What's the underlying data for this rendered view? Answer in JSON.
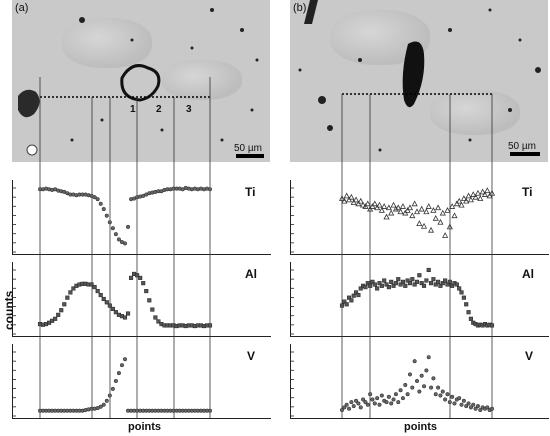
{
  "figure": {
    "panel_a_tag": "(a)",
    "panel_b_tag": "(b)",
    "scale_bar_a": "50 µm",
    "scale_bar_b": "50 µm",
    "regions_a": [
      "1",
      "2",
      "3"
    ],
    "ylabel": "counts",
    "xlabel_a": "points",
    "xlabel_b": "points"
  },
  "chart_data": [
    {
      "type": "scatter",
      "panel": "a",
      "element": "Ti",
      "xlabel": "points",
      "ylabel": "counts",
      "marker": "circle",
      "x": [
        0,
        3,
        6,
        9,
        12,
        15,
        18,
        21,
        24,
        27,
        30,
        33,
        36,
        39,
        42,
        45,
        48,
        51,
        54,
        57,
        60,
        63,
        66,
        69,
        72,
        75,
        78,
        81,
        84,
        87,
        90,
        93,
        96,
        99,
        102,
        105,
        108,
        111,
        114,
        117,
        120,
        123,
        126,
        129,
        132,
        135,
        138,
        141,
        144,
        147,
        150,
        153,
        156,
        159,
        162,
        165,
        168
      ],
      "values": [
        0.92,
        0.92,
        0.93,
        0.92,
        0.91,
        0.92,
        0.9,
        0.89,
        0.88,
        0.86,
        0.84,
        0.84,
        0.83,
        0.84,
        0.84,
        0.84,
        0.83,
        0.82,
        0.8,
        0.77,
        0.7,
        0.62,
        0.52,
        0.42,
        0.33,
        0.24,
        0.16,
        0.12,
        0.1,
        0.35,
        0.77,
        0.78,
        0.8,
        0.81,
        0.82,
        0.84,
        0.86,
        0.87,
        0.88,
        0.89,
        0.89,
        0.91,
        0.92,
        0.92,
        0.93,
        0.93,
        0.93,
        0.92,
        0.94,
        0.93,
        0.92,
        0.93,
        0.92,
        0.93,
        0.92,
        0.93,
        0.92
      ]
    },
    {
      "type": "scatter",
      "panel": "a",
      "element": "Al",
      "xlabel": "points",
      "ylabel": "counts",
      "marker": "square",
      "x": [
        0,
        3,
        6,
        9,
        12,
        15,
        18,
        21,
        24,
        27,
        30,
        33,
        36,
        39,
        42,
        45,
        48,
        51,
        54,
        57,
        60,
        63,
        66,
        69,
        72,
        75,
        78,
        81,
        84,
        87,
        90,
        93,
        96,
        99,
        102,
        105,
        108,
        111,
        114,
        117,
        120,
        123,
        126,
        129,
        132,
        135,
        138,
        141,
        144,
        147,
        150,
        153,
        156,
        159,
        162,
        165,
        168
      ],
      "values": [
        0.12,
        0.11,
        0.12,
        0.14,
        0.17,
        0.2,
        0.26,
        0.33,
        0.42,
        0.52,
        0.6,
        0.66,
        0.7,
        0.72,
        0.73,
        0.73,
        0.72,
        0.72,
        0.68,
        0.62,
        0.56,
        0.5,
        0.45,
        0.4,
        0.35,
        0.3,
        0.26,
        0.24,
        0.22,
        0.28,
        0.82,
        0.88,
        0.86,
        0.82,
        0.74,
        0.62,
        0.48,
        0.34,
        0.22,
        0.16,
        0.12,
        0.1,
        0.1,
        0.1,
        0.1,
        0.09,
        0.1,
        0.1,
        0.09,
        0.1,
        0.1,
        0.09,
        0.1,
        0.1,
        0.09,
        0.1,
        0.1
      ]
    },
    {
      "type": "scatter",
      "panel": "a",
      "element": "V",
      "xlabel": "points",
      "ylabel": "counts",
      "marker": "circle",
      "x": [
        0,
        3,
        6,
        9,
        12,
        15,
        18,
        21,
        24,
        27,
        30,
        33,
        36,
        39,
        42,
        45,
        48,
        51,
        54,
        57,
        60,
        63,
        66,
        69,
        72,
        75,
        78,
        81,
        84,
        87,
        90,
        93,
        96,
        99,
        102,
        105,
        108,
        111,
        114,
        117,
        120,
        123,
        126,
        129,
        132,
        135,
        138,
        141,
        144,
        147,
        150,
        153,
        156,
        159,
        162,
        165,
        168
      ],
      "values": [
        0.05,
        0.05,
        0.05,
        0.05,
        0.05,
        0.05,
        0.05,
        0.05,
        0.05,
        0.05,
        0.05,
        0.05,
        0.05,
        0.05,
        0.05,
        0.06,
        0.07,
        0.08,
        0.08,
        0.09,
        0.11,
        0.14,
        0.2,
        0.28,
        0.38,
        0.5,
        0.62,
        0.74,
        0.83,
        0.05,
        0.05,
        0.05,
        0.05,
        0.05,
        0.05,
        0.05,
        0.05,
        0.05,
        0.05,
        0.05,
        0.05,
        0.05,
        0.05,
        0.05,
        0.05,
        0.05,
        0.05,
        0.05,
        0.05,
        0.05,
        0.05,
        0.05,
        0.05,
        0.05,
        0.05,
        0.05,
        0.05
      ]
    },
    {
      "type": "scatter",
      "panel": "b",
      "element": "Ti",
      "xlabel": "points",
      "ylabel": "counts",
      "marker": "triangle",
      "x": [
        0,
        3,
        6,
        9,
        12,
        15,
        18,
        21,
        24,
        27,
        30,
        33,
        36,
        39,
        42,
        45,
        48,
        51,
        54,
        57,
        60,
        63,
        66,
        69,
        72,
        75,
        78,
        81,
        84,
        87,
        90,
        93,
        96,
        99,
        102,
        105,
        108,
        111,
        114,
        117,
        120,
        123,
        126,
        129,
        132,
        135,
        138,
        141,
        144,
        147,
        150,
        153,
        156,
        159,
        162,
        165,
        168,
        171,
        174,
        177,
        180,
        183,
        186,
        189,
        192
      ],
      "values": [
        0.78,
        0.74,
        0.82,
        0.76,
        0.8,
        0.72,
        0.76,
        0.7,
        0.74,
        0.68,
        0.66,
        0.7,
        0.62,
        0.66,
        0.7,
        0.64,
        0.68,
        0.6,
        0.66,
        0.5,
        0.64,
        0.56,
        0.68,
        0.62,
        0.64,
        0.58,
        0.66,
        0.56,
        0.6,
        0.64,
        0.52,
        0.7,
        0.58,
        0.4,
        0.62,
        0.36,
        0.58,
        0.66,
        0.3,
        0.6,
        0.48,
        0.64,
        0.42,
        0.56,
        0.22,
        0.6,
        0.35,
        0.66,
        0.52,
        0.7,
        0.74,
        0.68,
        0.78,
        0.74,
        0.82,
        0.76,
        0.84,
        0.8,
        0.86,
        0.78,
        0.88,
        0.84,
        0.9,
        0.82,
        0.86
      ]
    },
    {
      "type": "scatter",
      "panel": "b",
      "element": "Al",
      "xlabel": "points",
      "ylabel": "counts",
      "marker": "square",
      "x": [
        0,
        3,
        6,
        9,
        12,
        15,
        18,
        21,
        24,
        27,
        30,
        33,
        36,
        39,
        42,
        45,
        48,
        51,
        54,
        57,
        60,
        63,
        66,
        69,
        72,
        75,
        78,
        81,
        84,
        87,
        90,
        93,
        96,
        99,
        102,
        105,
        108,
        111,
        114,
        117,
        120,
        123,
        126,
        129,
        132,
        135,
        138,
        141,
        144,
        147,
        150,
        153,
        156,
        159,
        162,
        165,
        168,
        171,
        174,
        177,
        180,
        183,
        186,
        189,
        192
      ],
      "values": [
        0.4,
        0.46,
        0.42,
        0.52,
        0.48,
        0.55,
        0.6,
        0.56,
        0.66,
        0.7,
        0.68,
        0.74,
        0.7,
        0.76,
        0.72,
        0.66,
        0.74,
        0.7,
        0.78,
        0.72,
        0.68,
        0.76,
        0.7,
        0.74,
        0.8,
        0.72,
        0.76,
        0.7,
        0.78,
        0.74,
        0.8,
        0.72,
        0.76,
        0.86,
        0.74,
        0.7,
        0.78,
        0.94,
        0.74,
        0.8,
        0.72,
        0.76,
        0.7,
        0.74,
        0.78,
        0.72,
        0.76,
        0.7,
        0.74,
        0.72,
        0.66,
        0.6,
        0.52,
        0.42,
        0.3,
        0.2,
        0.14,
        0.12,
        0.1,
        0.11,
        0.1,
        0.12,
        0.1,
        0.11,
        0.1
      ]
    },
    {
      "type": "scatter",
      "panel": "b",
      "element": "V",
      "xlabel": "points",
      "ylabel": "counts",
      "marker": "circle",
      "x": [
        0,
        3,
        6,
        9,
        12,
        15,
        18,
        21,
        24,
        27,
        30,
        33,
        36,
        39,
        42,
        45,
        48,
        51,
        54,
        57,
        60,
        63,
        66,
        69,
        72,
        75,
        78,
        81,
        84,
        87,
        90,
        93,
        96,
        99,
        102,
        105,
        108,
        111,
        114,
        117,
        120,
        123,
        126,
        129,
        132,
        135,
        138,
        141,
        144,
        147,
        150,
        153,
        156,
        159,
        162,
        165,
        168,
        171,
        174,
        177,
        180,
        183,
        186,
        189,
        192
      ],
      "values": [
        0.06,
        0.1,
        0.14,
        0.08,
        0.18,
        0.12,
        0.2,
        0.16,
        0.1,
        0.22,
        0.18,
        0.14,
        0.3,
        0.22,
        0.16,
        0.24,
        0.14,
        0.28,
        0.2,
        0.18,
        0.26,
        0.16,
        0.22,
        0.3,
        0.18,
        0.36,
        0.24,
        0.44,
        0.3,
        0.6,
        0.4,
        0.8,
        0.5,
        0.34,
        0.58,
        0.42,
        0.66,
        0.86,
        0.4,
        0.54,
        0.3,
        0.4,
        0.28,
        0.34,
        0.22,
        0.3,
        0.18,
        0.26,
        0.16,
        0.22,
        0.24,
        0.14,
        0.2,
        0.12,
        0.16,
        0.1,
        0.14,
        0.08,
        0.12,
        0.06,
        0.1,
        0.08,
        0.1,
        0.06,
        0.08
      ]
    }
  ]
}
